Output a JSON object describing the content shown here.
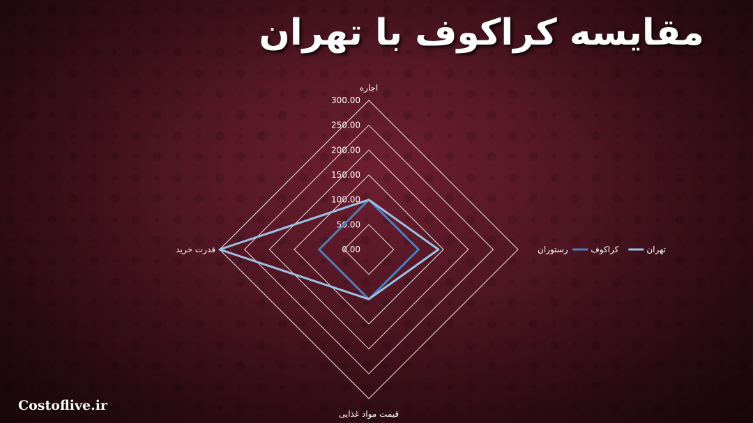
{
  "page": {
    "title": "مقایسه کراکوف با تهران",
    "watermark": "Costoflive.ir"
  },
  "chart_data": {
    "type": "radar",
    "axes": [
      "اجاره",
      "رستوران",
      "قیمت مواد غذایی",
      "قدرت خرید"
    ],
    "rlim": [
      0,
      300
    ],
    "ticks": [
      0,
      50,
      100,
      150,
      200,
      250,
      300
    ],
    "tick_labels": [
      "0.00",
      "50.00",
      "100.00",
      "150.00",
      "200.00",
      "250.00",
      "300.00"
    ],
    "grid": true,
    "legend_position": "right",
    "series": [
      {
        "name": "کراکوف",
        "color": "#4f81bd",
        "values": [
          100,
          100,
          100,
          100
        ]
      },
      {
        "name": "تهران",
        "color": "#9dc3e6",
        "values": [
          100,
          140,
          100,
          300
        ]
      }
    ]
  }
}
